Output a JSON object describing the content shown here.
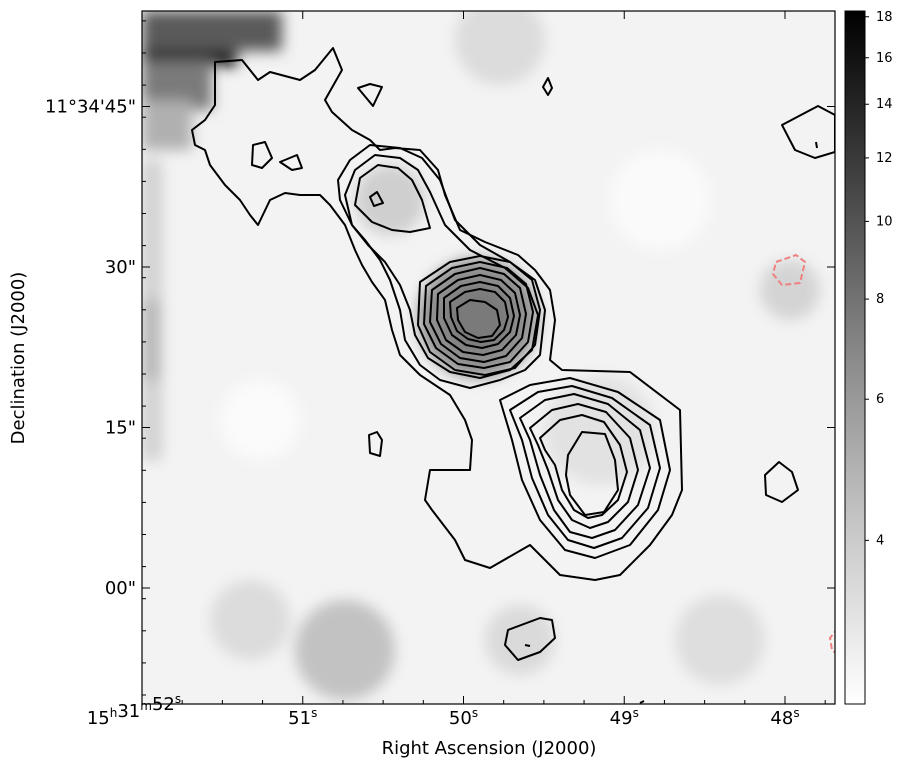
{
  "chart_data": {
    "type": "heatmap",
    "title": "",
    "xlabel": "Right Ascension (J2000)",
    "ylabel": "Declination (J2000)",
    "x_ticks": [
      {
        "h": "15",
        "m": "31",
        "s": "52",
        "sec": 52
      },
      {
        "s": "51",
        "sec": 51
      },
      {
        "s": "50",
        "sec": 50
      },
      {
        "s": "49",
        "sec": 49
      },
      {
        "s": "48",
        "sec": 48
      }
    ],
    "y_ticks": [
      {
        "label": "11°34'45\"",
        "arcsec": 45
      },
      {
        "label": "30\"",
        "arcsec": 30
      },
      {
        "label": "15\"",
        "arcsec": 15
      },
      {
        "label": "00\"",
        "arcsec": 0
      }
    ],
    "colorbar": {
      "scale": "log",
      "range": [
        2.5,
        18.3
      ],
      "ticks": [
        4,
        6,
        8,
        10,
        12,
        14,
        16,
        18
      ],
      "colormap": "gray_r"
    },
    "colors": {
      "contour_positive": "#000000",
      "contour_negative": "#f08080"
    }
  }
}
